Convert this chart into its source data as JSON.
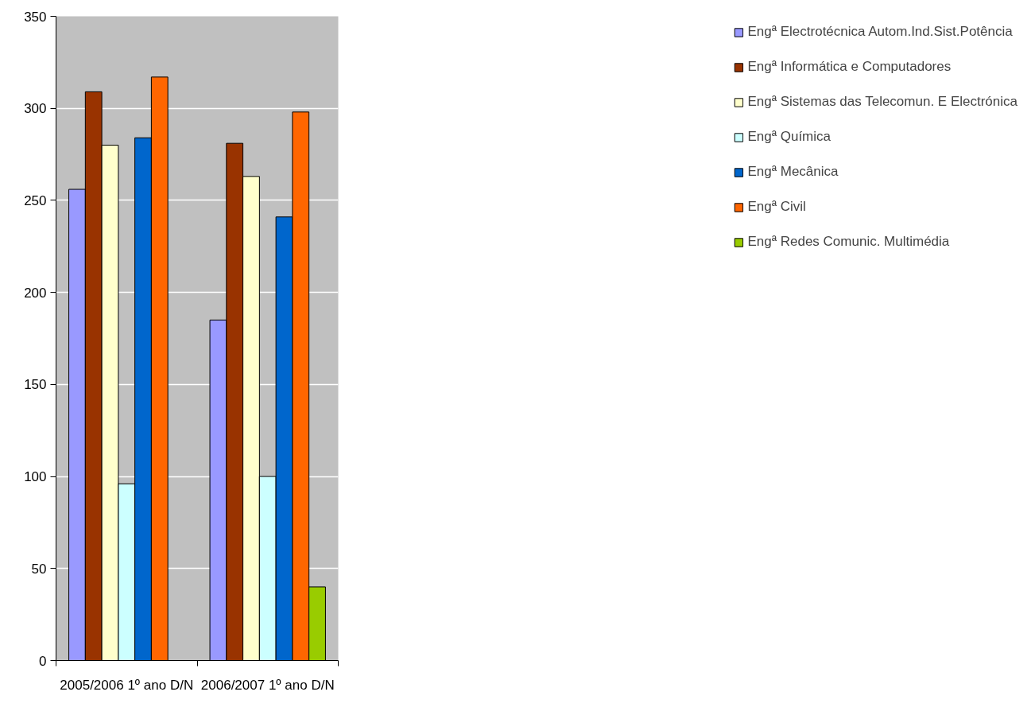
{
  "chart_data": {
    "type": "bar",
    "categories": [
      "2005/2006 1º ano D/N",
      "2006/2007 1º ano D/N"
    ],
    "series": [
      {
        "name": "Engª Electrotécnica Autom.Ind.Sist.Potência",
        "color": "#9999ff",
        "values": [
          256,
          185
        ]
      },
      {
        "name": "Engª Informática e Computadores",
        "color": "#993300",
        "values": [
          309,
          281
        ]
      },
      {
        "name": "Engª Sistemas das Telecomun. E Electrónica",
        "color": "#ffffcc",
        "values": [
          280,
          263
        ]
      },
      {
        "name": "Engª Química",
        "color": "#ccffff",
        "values": [
          96,
          100
        ]
      },
      {
        "name": "Engª Mecânica",
        "color": "#0066cc",
        "values": [
          284,
          241
        ]
      },
      {
        "name": "Engª Civil",
        "color": "#ff6600",
        "values": [
          317,
          298
        ]
      },
      {
        "name": "Engª Redes Comunic. Multimédia",
        "color": "#99cc00",
        "values": [
          null,
          40
        ]
      }
    ],
    "ylim": [
      0,
      350
    ],
    "yticks": [
      0,
      50,
      100,
      150,
      200,
      250,
      300,
      350
    ],
    "grid": "y",
    "legend": "right"
  }
}
